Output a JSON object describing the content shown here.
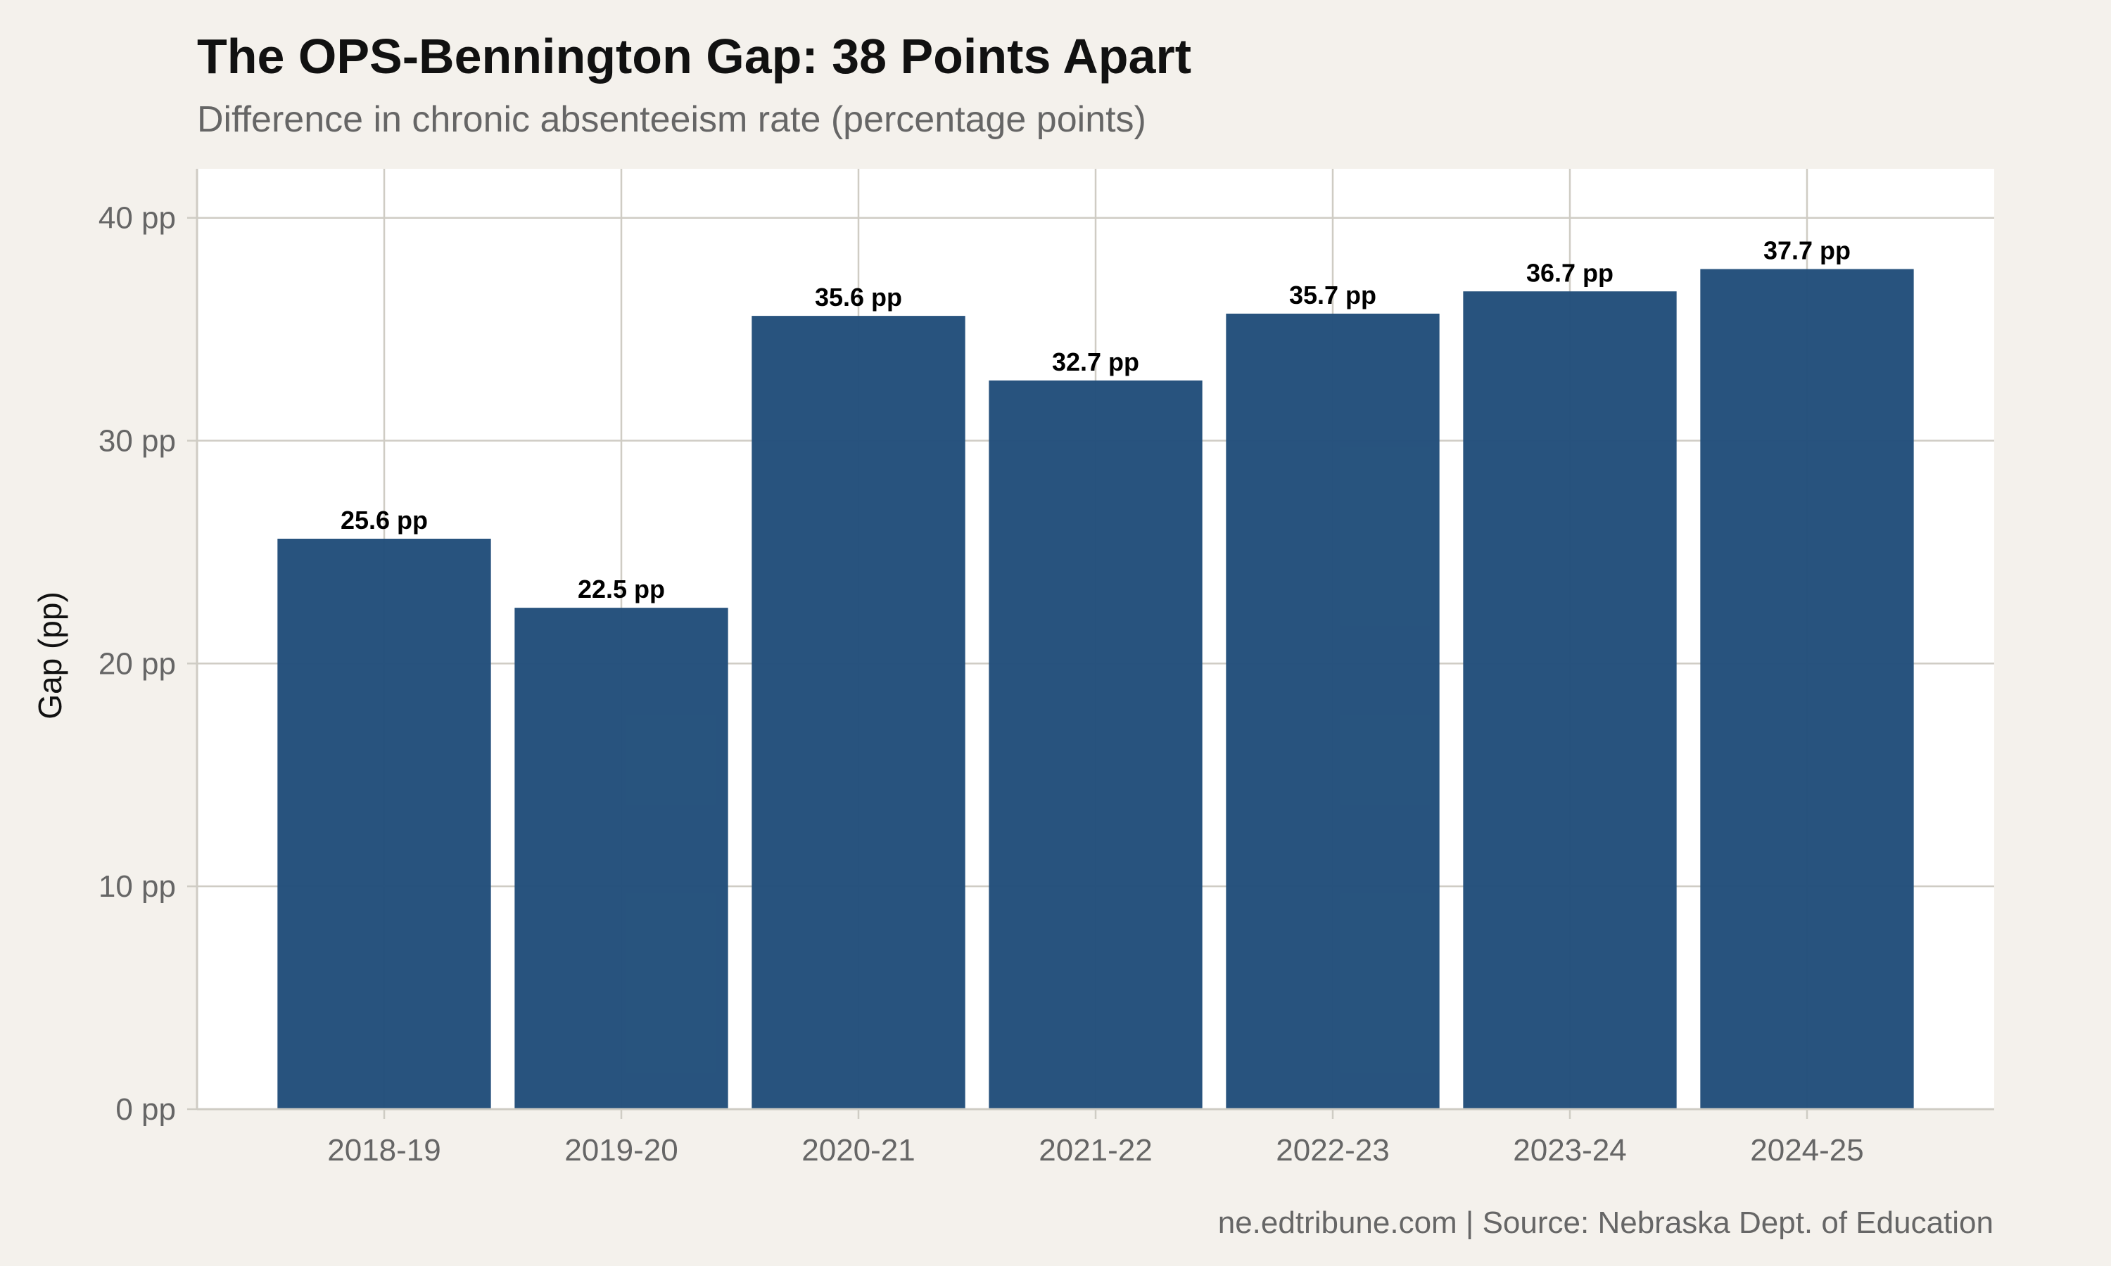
{
  "title": "The OPS-Bennington Gap: 38 Points Apart",
  "subtitle": "Difference in chronic absenteeism rate (percentage points)",
  "caption": "ne.edtribune.com | Source: Nebraska Dept. of Education",
  "colors": {
    "background": "#f4f1ec",
    "panel": "#ffffff",
    "bar": "#24507b",
    "grid": "#cfccc4",
    "axis_text": "#666666"
  },
  "chart_data": {
    "type": "bar",
    "title": "The OPS-Bennington Gap: 38 Points Apart",
    "subtitle": "Difference in chronic absenteeism rate (percentage points)",
    "xlabel": "",
    "ylabel": "Gap (pp)",
    "categories": [
      "2018-19",
      "2019-20",
      "2020-21",
      "2021-22",
      "2022-23",
      "2023-24",
      "2024-25"
    ],
    "values": [
      25.6,
      22.5,
      35.6,
      32.7,
      35.7,
      36.7,
      37.7
    ],
    "data_labels": [
      "25.6 pp",
      "22.5 pp",
      "35.6 pp",
      "32.7 pp",
      "35.7 pp",
      "36.7 pp",
      "37.7 pp"
    ],
    "y_ticks": [
      0,
      10,
      20,
      30,
      40
    ],
    "y_tick_labels": [
      "0 pp",
      "10 pp",
      "20 pp",
      "30 pp",
      "40 pp"
    ],
    "ylim": [
      0,
      42.2
    ],
    "grid": true,
    "legend": "none"
  }
}
